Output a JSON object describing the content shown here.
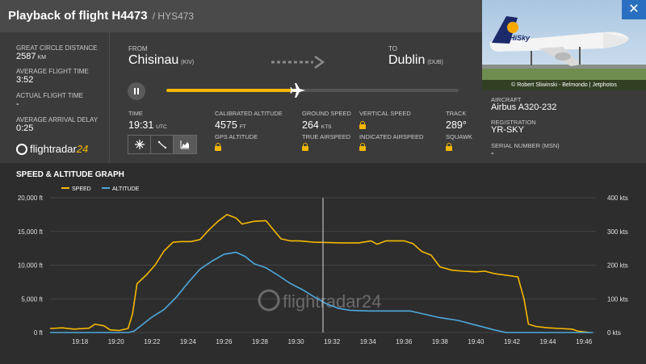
{
  "header": {
    "title": "Playback of flight H4473",
    "subtitle": "/ HYS473",
    "close_symbol": "✕"
  },
  "photo": {
    "credit": "© Robert Sliwinski - Belmondo | Jetphotos",
    "livery_text": "HiSky"
  },
  "stats": {
    "distance_label": "GREAT CIRCLE DISTANCE",
    "distance_value": "2587",
    "distance_unit": "KM",
    "avg_time_label": "AVERAGE FLIGHT TIME",
    "avg_time_value": "3:52",
    "actual_time_label": "ACTUAL FLIGHT TIME",
    "actual_time_value": "-",
    "delay_label": "AVERAGE ARRIVAL DELAY",
    "delay_value": "0:25"
  },
  "logo": {
    "text": "flightradar",
    "num": "24"
  },
  "route": {
    "from_label": "FROM",
    "from_city": "Chisinau",
    "from_code": "(KIV)",
    "to_label": "TO",
    "to_city": "Dublin",
    "to_code": "(DUB)"
  },
  "playback": {
    "progress": 0.45
  },
  "flight": {
    "time_label": "TIME",
    "time_value": "19:31",
    "time_unit": "UTC",
    "cal_alt_label": "CALIBRATED ALTITUDE",
    "cal_alt_value": "4575",
    "cal_alt_unit": "FT",
    "gps_alt_label": "GPS ALTITUDE",
    "ground_speed_label": "GROUND SPEED",
    "ground_speed_value": "264",
    "ground_speed_unit": "KTS",
    "true_airspeed_label": "TRUE AIRSPEED",
    "vertical_speed_label": "VERTICAL SPEED",
    "indicated_airspeed_label": "INDICATED AIRSPEED",
    "track_label": "TRACK",
    "track_value": "289°",
    "squawk_label": "SQUAWK"
  },
  "aircraft": {
    "aircraft_label": "AIRCRAFT",
    "aircraft_value": "Airbus A320-232",
    "registration_label": "REGISTRATION",
    "registration_value": "YR-SKY",
    "msn_label": "SERIAL NUMBER (MSN)",
    "msn_value": "-"
  },
  "graph": {
    "title": "SPEED & ALTITUDE GRAPH"
  },
  "colors": {
    "speed": "#f5b800",
    "altitude": "#4da8dc",
    "accent": "#f5b800"
  },
  "chart_data": {
    "type": "line",
    "title": "SPEED & ALTITUDE GRAPH",
    "legend_position": "top-left",
    "x_ticks": [
      "19:18",
      "19:20",
      "19:22",
      "19:24",
      "19:26",
      "19:28",
      "19:30",
      "19:32",
      "19:34",
      "19:36",
      "19:38",
      "19:40",
      "19:42",
      "19:44",
      "19:46"
    ],
    "xlim": [
      "19:16:20",
      "19:46:40"
    ],
    "y_left_ticks": [
      "0 ft",
      "5,000 ft",
      "10,000 ft",
      "15,000 ft",
      "20,000 ft"
    ],
    "y_left_lim": [
      0,
      20000
    ],
    "y_right_ticks": [
      "0 kts",
      "100 kts",
      "200 kts",
      "300 kts",
      "400 kts"
    ],
    "y_right_lim": [
      0,
      400
    ],
    "grid": true,
    "cursor_time": "19:31:30",
    "watermark": "flightradar24",
    "series": [
      {
        "name": "SPEED",
        "axis": "right",
        "points": [
          [
            "19:16:20",
            12
          ],
          [
            "19:17:00",
            14
          ],
          [
            "19:17:40",
            10
          ],
          [
            "19:18:30",
            13
          ],
          [
            "19:18:50",
            25
          ],
          [
            "19:19:20",
            20
          ],
          [
            "19:19:40",
            8
          ],
          [
            "19:20:10",
            6
          ],
          [
            "19:20:40",
            12
          ],
          [
            "19:20:55",
            55
          ],
          [
            "19:21:10",
            145
          ],
          [
            "19:21:40",
            170
          ],
          [
            "19:22:10",
            200
          ],
          [
            "19:22:40",
            242
          ],
          [
            "19:23:10",
            268
          ],
          [
            "19:23:40",
            270
          ],
          [
            "19:24:10",
            270
          ],
          [
            "19:24:40",
            276
          ],
          [
            "19:25:10",
            305
          ],
          [
            "19:25:40",
            330
          ],
          [
            "19:26:10",
            350
          ],
          [
            "19:26:40",
            340
          ],
          [
            "19:27:00",
            322
          ],
          [
            "19:27:40",
            330
          ],
          [
            "19:28:20",
            332
          ],
          [
            "19:28:40",
            310
          ],
          [
            "19:29:10",
            278
          ],
          [
            "19:29:40",
            272
          ],
          [
            "19:30:10",
            272
          ],
          [
            "19:31:00",
            268
          ],
          [
            "19:32:30",
            266
          ],
          [
            "19:33:30",
            266
          ],
          [
            "19:34:10",
            272
          ],
          [
            "19:34:30",
            262
          ],
          [
            "19:35:00",
            272
          ],
          [
            "19:36:00",
            272
          ],
          [
            "19:36:30",
            264
          ],
          [
            "19:37:00",
            240
          ],
          [
            "19:37:30",
            230
          ],
          [
            "19:38:00",
            195
          ],
          [
            "19:38:40",
            185
          ],
          [
            "19:39:20",
            182
          ],
          [
            "19:40:00",
            180
          ],
          [
            "19:40:30",
            182
          ],
          [
            "19:41:00",
            175
          ],
          [
            "19:41:40",
            170
          ],
          [
            "19:42:20",
            165
          ],
          [
            "19:42:40",
            100
          ],
          [
            "19:42:55",
            25
          ],
          [
            "19:43:20",
            18
          ],
          [
            "19:44:00",
            14
          ],
          [
            "19:44:40",
            12
          ],
          [
            "19:45:20",
            10
          ],
          [
            "19:45:40",
            4
          ],
          [
            "19:46:20",
            0
          ]
        ]
      },
      {
        "name": "ALTITUDE",
        "axis": "left",
        "points": [
          [
            "19:16:20",
            0
          ],
          [
            "19:20:40",
            0
          ],
          [
            "19:21:00",
            200
          ],
          [
            "19:21:20",
            900
          ],
          [
            "19:22:00",
            2300
          ],
          [
            "19:22:40",
            3400
          ],
          [
            "19:23:20",
            5200
          ],
          [
            "19:24:00",
            7400
          ],
          [
            "19:24:40",
            9400
          ],
          [
            "19:25:20",
            10600
          ],
          [
            "19:26:00",
            11600
          ],
          [
            "19:26:40",
            11900
          ],
          [
            "19:27:10",
            11300
          ],
          [
            "19:27:40",
            10200
          ],
          [
            "19:28:20",
            9600
          ],
          [
            "19:29:00",
            8500
          ],
          [
            "19:29:40",
            7300
          ],
          [
            "19:30:20",
            6400
          ],
          [
            "19:31:00",
            5300
          ],
          [
            "19:31:40",
            4300
          ],
          [
            "19:32:20",
            3600
          ],
          [
            "19:33:00",
            3300
          ],
          [
            "19:34:00",
            3200
          ],
          [
            "19:35:00",
            3200
          ],
          [
            "19:36:20",
            3200
          ],
          [
            "19:37:00",
            2800
          ],
          [
            "19:38:00",
            2200
          ],
          [
            "19:39:00",
            1800
          ],
          [
            "19:40:00",
            1100
          ],
          [
            "19:41:00",
            400
          ],
          [
            "19:41:40",
            0
          ],
          [
            "19:46:30",
            0
          ]
        ]
      }
    ]
  }
}
